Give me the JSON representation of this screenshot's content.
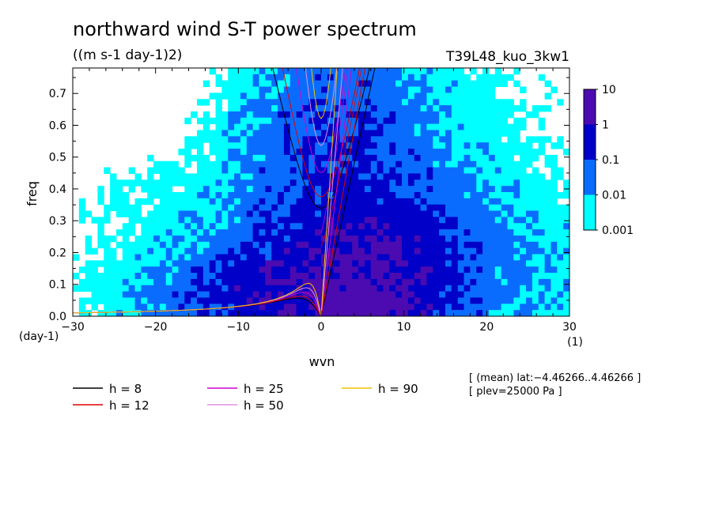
{
  "chart_data": {
    "type": "heatmap",
    "title": "northward wind S-T power spectrum",
    "units": "((m s-1 day-1)2)",
    "experiment": "T39L48_kuo_3kw1",
    "xlabel": "wvn",
    "ylabel": "freq",
    "x_unit_label": "(1)",
    "y_unit_label": "(day-1)",
    "xlim": [
      -30,
      30
    ],
    "ylim": [
      0,
      0.78
    ],
    "x_ticks": [
      -30,
      -20,
      -10,
      0,
      10,
      20,
      30
    ],
    "x_tick_labels": [
      "−30",
      "−20",
      "−10",
      "0",
      "10",
      "20",
      "30"
    ],
    "y_ticks": [
      0,
      0.1,
      0.2,
      0.3,
      0.4,
      0.5,
      0.6,
      0.7
    ],
    "y_tick_labels": [
      "0.0",
      "0.1",
      "0.2",
      "0.3",
      "0.4",
      "0.5",
      "0.6",
      "0.7"
    ],
    "colorbar": {
      "levels": [
        0.001,
        0.01,
        0.1,
        1,
        10
      ],
      "labels": [
        "0.001",
        "0.01",
        "0.1",
        "1",
        "10"
      ],
      "colors": [
        "#00ffff",
        "#0a6cff",
        "#0000c8",
        "#4b0bb0"
      ]
    },
    "heatmap_blobs": [
      {
        "cx": 5,
        "cy": 0.05,
        "sx": 3,
        "sy": 0.03,
        "amp": 4
      },
      {
        "cx": 0,
        "cy": 0.07,
        "sx": 6,
        "sy": 0.08,
        "amp": 1.2
      },
      {
        "cx": 6,
        "cy": 0.15,
        "sx": 5,
        "sy": 0.12,
        "amp": 0.8
      },
      {
        "cx": 2,
        "cy": 0.3,
        "sx": 5,
        "sy": 0.25,
        "amp": 0.15
      },
      {
        "cx": 3,
        "cy": 0.55,
        "sx": 6,
        "sy": 0.25,
        "amp": 0.02
      },
      {
        "cx": -8,
        "cy": 0.05,
        "sx": 7,
        "sy": 0.06,
        "amp": 0.05
      },
      {
        "cx": 14,
        "cy": 0.15,
        "sx": 8,
        "sy": 0.15,
        "amp": 0.03
      },
      {
        "cx": -6,
        "cy": 0.2,
        "sx": 10,
        "sy": 0.15,
        "amp": 0.01
      },
      {
        "cx": 10,
        "cy": 0.4,
        "sx": 9,
        "sy": 0.25,
        "amp": 0.006
      }
    ],
    "heatmap_noise": 0.55,
    "dispersion_h": [
      8,
      12,
      25,
      50,
      90
    ],
    "legend": [
      {
        "label": "h =  8",
        "color": "#000000"
      },
      {
        "label": "h = 12",
        "color": "#e00000"
      },
      {
        "label": "h = 25",
        "color": "#d000d0"
      },
      {
        "label": "h = 50",
        "color": "#e090e0"
      },
      {
        "label": "h = 90",
        "color": "#f0c000"
      }
    ],
    "info_lines": [
      "[ (mean) lat:−4.46266..4.46266 ]",
      "[ plev=25000 Pa ]"
    ]
  }
}
